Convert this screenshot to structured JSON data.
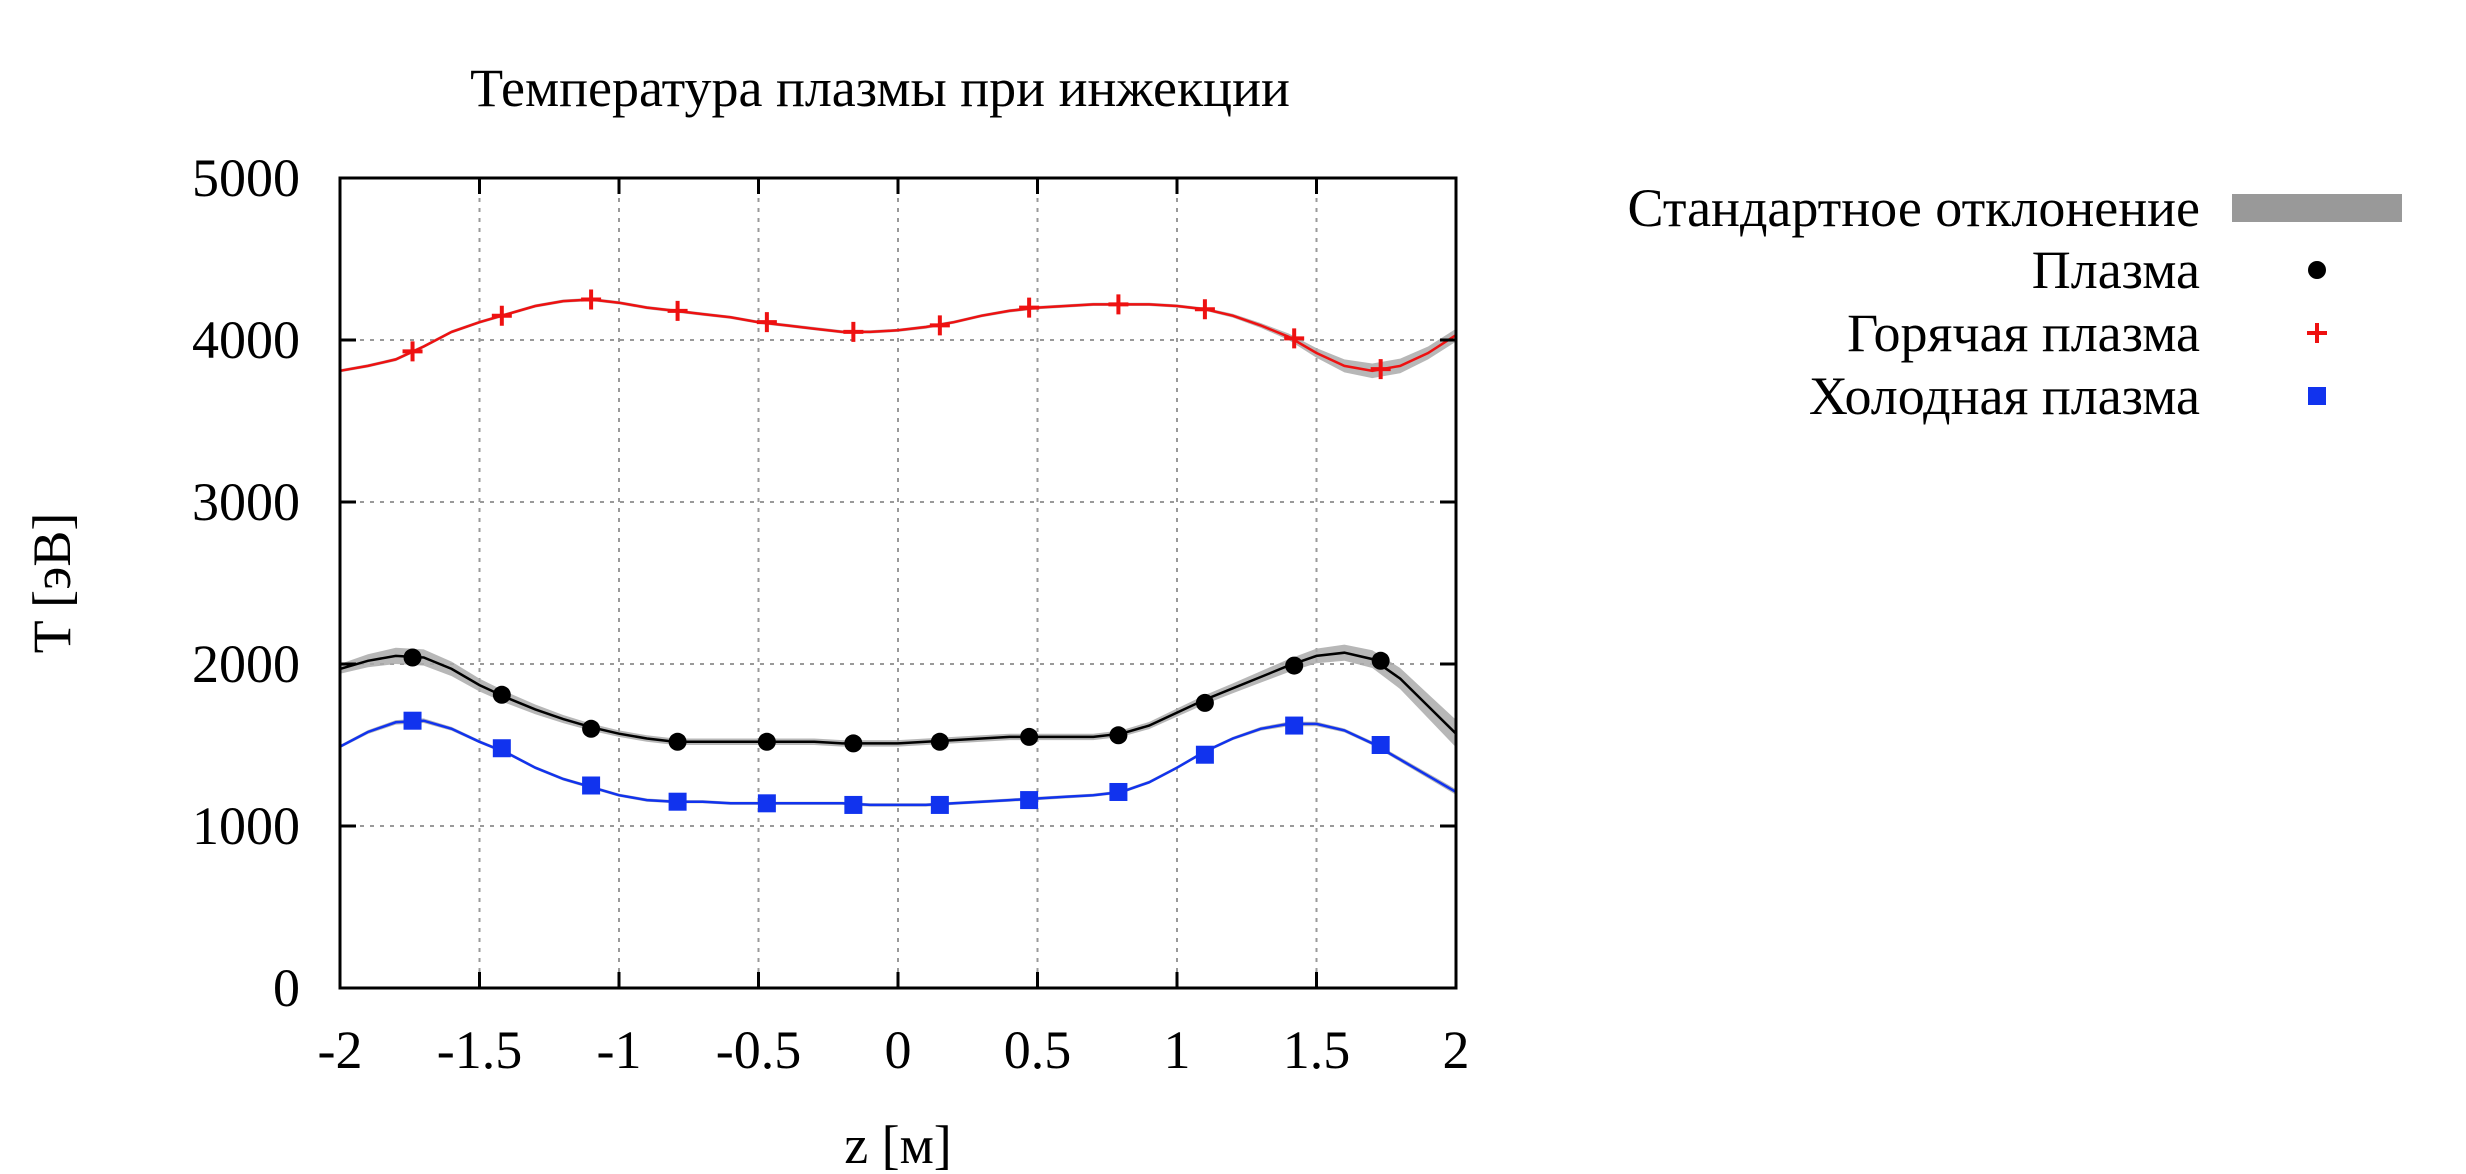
{
  "chart_data": {
    "type": "line",
    "title": "Температура плазмы при инжекции",
    "xlabel": "z [м]",
    "ylabel": "T [эВ]",
    "xlim": [
      -2,
      2
    ],
    "ylim": [
      0,
      5000
    ],
    "x_ticks": [
      -2,
      -1.5,
      -1,
      -0.5,
      0,
      0.5,
      1,
      1.5,
      2
    ],
    "x_tick_labels": [
      "-2",
      "-1.5",
      "-1",
      "-0.5",
      "0",
      "0.5",
      "1",
      "1.5",
      "2"
    ],
    "y_ticks": [
      0,
      1000,
      2000,
      3000,
      4000,
      5000
    ],
    "y_tick_labels": [
      "0",
      "1000",
      "2000",
      "3000",
      "4000",
      "5000"
    ],
    "grid": true,
    "legend_position": "right",
    "legend": [
      {
        "label": "Стандартное отклонение",
        "marker": "band",
        "color": "#999999"
      },
      {
        "label": "Плазма",
        "marker": "circle",
        "color": "#000000"
      },
      {
        "label": "Горячая плазма",
        "marker": "plus",
        "color": "#ee1111"
      },
      {
        "label": "Холодная плазма",
        "marker": "square",
        "color": "#1133ee"
      }
    ],
    "x": [
      -1.74,
      -1.42,
      -1.1,
      -0.79,
      -0.47,
      -0.16,
      0.15,
      0.47,
      0.79,
      1.1,
      1.42,
      1.73
    ],
    "series": [
      {
        "name": "Горячая плазма",
        "marker": "plus",
        "color": "#ee1111",
        "values": [
          3930,
          4150,
          4250,
          4180,
          4110,
          4050,
          4090,
          4200,
          4220,
          4190,
          4010,
          3820
        ],
        "curve": {
          "x": [
            -2,
            -1.9,
            -1.8,
            -1.7,
            -1.6,
            -1.5,
            -1.4,
            -1.3,
            -1.2,
            -1.1,
            -1.0,
            -0.9,
            -0.8,
            -0.7,
            -0.6,
            -0.5,
            -0.4,
            -0.3,
            -0.2,
            -0.1,
            0,
            0.1,
            0.2,
            0.3,
            0.4,
            0.5,
            0.6,
            0.7,
            0.8,
            0.9,
            1.0,
            1.1,
            1.2,
            1.3,
            1.4,
            1.5,
            1.6,
            1.7,
            1.8,
            1.9,
            2.0
          ],
          "y": [
            3810,
            3840,
            3880,
            3960,
            4050,
            4110,
            4160,
            4210,
            4240,
            4250,
            4230,
            4200,
            4180,
            4160,
            4140,
            4110,
            4090,
            4070,
            4050,
            4050,
            4060,
            4080,
            4110,
            4150,
            4180,
            4200,
            4210,
            4220,
            4220,
            4220,
            4210,
            4190,
            4150,
            4090,
            4020,
            3920,
            3840,
            3810,
            3840,
            3920,
            4030
          ],
          "band": [
            10,
            10,
            10,
            10,
            10,
            10,
            10,
            10,
            10,
            10,
            10,
            10,
            10,
            10,
            10,
            10,
            10,
            10,
            10,
            10,
            10,
            10,
            10,
            10,
            10,
            10,
            10,
            10,
            10,
            10,
            10,
            10,
            12,
            15,
            20,
            30,
            40,
            45,
            45,
            40,
            40
          ]
        }
      },
      {
        "name": "Плазма",
        "marker": "circle",
        "color": "#000000",
        "values": [
          2040,
          1810,
          1600,
          1520,
          1520,
          1510,
          1520,
          1550,
          1560,
          1760,
          1990,
          2020
        ],
        "curve": {
          "x": [
            -2,
            -1.9,
            -1.8,
            -1.7,
            -1.6,
            -1.5,
            -1.4,
            -1.3,
            -1.2,
            -1.1,
            -1.0,
            -0.9,
            -0.8,
            -0.7,
            -0.6,
            -0.5,
            -0.4,
            -0.3,
            -0.2,
            -0.1,
            0,
            0.1,
            0.2,
            0.3,
            0.4,
            0.5,
            0.6,
            0.7,
            0.8,
            0.9,
            1.0,
            1.1,
            1.2,
            1.3,
            1.4,
            1.5,
            1.6,
            1.7,
            1.8,
            1.9,
            2.0
          ],
          "y": [
            1970,
            2020,
            2050,
            2040,
            1970,
            1870,
            1790,
            1720,
            1660,
            1610,
            1570,
            1540,
            1520,
            1520,
            1520,
            1520,
            1520,
            1520,
            1510,
            1510,
            1510,
            1520,
            1530,
            1540,
            1550,
            1550,
            1550,
            1550,
            1570,
            1620,
            1700,
            1780,
            1850,
            1920,
            1990,
            2050,
            2070,
            2030,
            1910,
            1740,
            1570
          ],
          "band": [
            30,
            40,
            50,
            50,
            45,
            40,
            35,
            30,
            25,
            22,
            20,
            20,
            20,
            20,
            20,
            20,
            20,
            20,
            20,
            20,
            20,
            20,
            20,
            20,
            20,
            20,
            20,
            20,
            20,
            22,
            25,
            28,
            30,
            35,
            40,
            45,
            50,
            55,
            65,
            75,
            85
          ]
        }
      },
      {
        "name": "Холодная плазма",
        "marker": "square",
        "color": "#1133ee",
        "values": [
          1650,
          1480,
          1250,
          1150,
          1140,
          1130,
          1130,
          1160,
          1210,
          1440,
          1620,
          1500
        ],
        "curve": {
          "x": [
            -2,
            -1.9,
            -1.8,
            -1.7,
            -1.6,
            -1.5,
            -1.4,
            -1.3,
            -1.2,
            -1.1,
            -1.0,
            -0.9,
            -0.8,
            -0.7,
            -0.6,
            -0.5,
            -0.4,
            -0.3,
            -0.2,
            -0.1,
            0,
            0.1,
            0.2,
            0.3,
            0.4,
            0.5,
            0.6,
            0.7,
            0.8,
            0.9,
            1.0,
            1.1,
            1.2,
            1.3,
            1.4,
            1.5,
            1.6,
            1.7,
            1.8,
            1.9,
            2.0
          ],
          "y": [
            1490,
            1580,
            1640,
            1650,
            1600,
            1520,
            1450,
            1360,
            1290,
            1240,
            1190,
            1160,
            1150,
            1150,
            1140,
            1140,
            1140,
            1140,
            1140,
            1130,
            1130,
            1130,
            1140,
            1150,
            1160,
            1170,
            1180,
            1190,
            1210,
            1270,
            1360,
            1460,
            1540,
            1600,
            1630,
            1630,
            1590,
            1510,
            1410,
            1310,
            1210
          ],
          "band": [
            10,
            12,
            14,
            14,
            12,
            10,
            10,
            10,
            10,
            10,
            10,
            10,
            10,
            10,
            10,
            10,
            10,
            10,
            10,
            10,
            10,
            10,
            10,
            10,
            10,
            10,
            10,
            10,
            10,
            10,
            10,
            10,
            10,
            12,
            14,
            14,
            12,
            12,
            14,
            16,
            18
          ]
        }
      }
    ]
  }
}
